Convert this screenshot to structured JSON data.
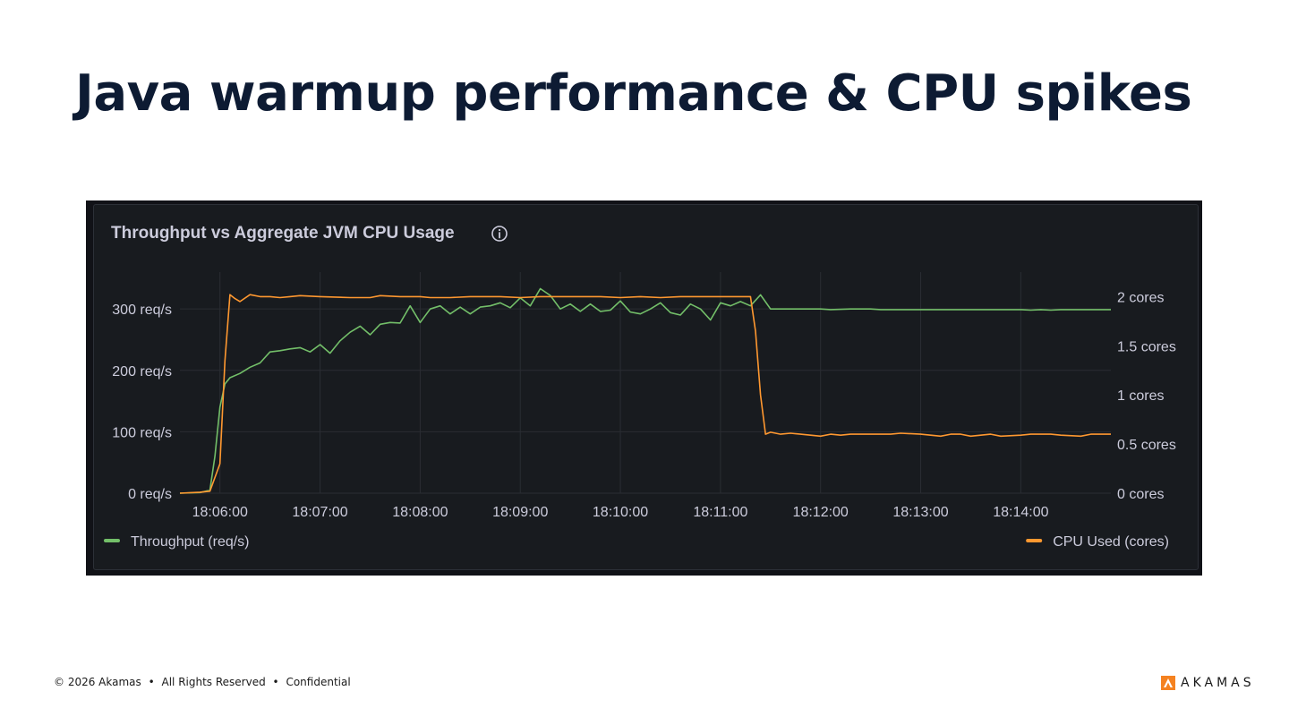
{
  "slide": {
    "title": "Java warmup performance & CPU spikes"
  },
  "footer": {
    "copyright": "© 2026 Akamas",
    "rights": "All Rights Reserved",
    "confidential": "Confidential",
    "separator": "•"
  },
  "logo": {
    "wordmark": "AKAMAS",
    "brand_color": "#f58220"
  },
  "panel": {
    "title": "Throughput vs Aggregate JVM CPU Usage",
    "info_icon": "info-icon"
  },
  "chart_data": {
    "type": "line",
    "title": "Throughput vs Aggregate JVM CPU Usage",
    "x_ticks": [
      "18:06:00",
      "18:07:00",
      "18:08:00",
      "18:09:00",
      "18:10:00",
      "18:11:00",
      "18:12:00",
      "18:13:00",
      "18:14:00"
    ],
    "xlim": [
      "18:05:36",
      "18:14:54"
    ],
    "y_left": {
      "ticks": [
        "0 req/s",
        "100 req/s",
        "200 req/s",
        "300 req/s"
      ],
      "lim": [
        0,
        360
      ]
    },
    "y_right": {
      "ticks": [
        "0 cores",
        "0.5 cores",
        "1 cores",
        "1.5 cores",
        "2 cores"
      ],
      "lim": [
        0,
        2.25
      ]
    },
    "grid": true,
    "legend": {
      "left": "bottom-left",
      "right": "bottom-right"
    },
    "series": [
      {
        "name": "Throughput (req/s)",
        "axis": "left",
        "color": "#73bf69",
        "points": [
          [
            "18:05:36",
            0
          ],
          [
            "18:05:48",
            1
          ],
          [
            "18:05:54",
            5
          ],
          [
            "18:05:57",
            60
          ],
          [
            "18:06:00",
            140
          ],
          [
            "18:06:03",
            178
          ],
          [
            "18:06:06",
            188
          ],
          [
            "18:06:12",
            195
          ],
          [
            "18:06:18",
            205
          ],
          [
            "18:06:24",
            212
          ],
          [
            "18:06:30",
            230
          ],
          [
            "18:06:36",
            232
          ],
          [
            "18:06:42",
            235
          ],
          [
            "18:06:48",
            237
          ],
          [
            "18:06:54",
            230
          ],
          [
            "18:07:00",
            242
          ],
          [
            "18:07:06",
            228
          ],
          [
            "18:07:12",
            248
          ],
          [
            "18:07:18",
            262
          ],
          [
            "18:07:24",
            272
          ],
          [
            "18:07:30",
            258
          ],
          [
            "18:07:36",
            275
          ],
          [
            "18:07:42",
            278
          ],
          [
            "18:07:48",
            277
          ],
          [
            "18:07:54",
            305
          ],
          [
            "18:08:00",
            278
          ],
          [
            "18:08:06",
            300
          ],
          [
            "18:08:12",
            305
          ],
          [
            "18:08:18",
            292
          ],
          [
            "18:08:24",
            303
          ],
          [
            "18:08:30",
            292
          ],
          [
            "18:08:36",
            303
          ],
          [
            "18:08:42",
            305
          ],
          [
            "18:08:48",
            310
          ],
          [
            "18:08:54",
            302
          ],
          [
            "18:09:00",
            318
          ],
          [
            "18:09:06",
            305
          ],
          [
            "18:09:12",
            333
          ],
          [
            "18:09:18",
            322
          ],
          [
            "18:09:24",
            300
          ],
          [
            "18:09:30",
            308
          ],
          [
            "18:09:36",
            296
          ],
          [
            "18:09:42",
            308
          ],
          [
            "18:09:48",
            296
          ],
          [
            "18:09:54",
            298
          ],
          [
            "18:10:00",
            313
          ],
          [
            "18:10:06",
            295
          ],
          [
            "18:10:12",
            292
          ],
          [
            "18:10:18",
            300
          ],
          [
            "18:10:24",
            310
          ],
          [
            "18:10:30",
            294
          ],
          [
            "18:10:36",
            290
          ],
          [
            "18:10:42",
            308
          ],
          [
            "18:10:48",
            300
          ],
          [
            "18:10:54",
            282
          ],
          [
            "18:11:00",
            310
          ],
          [
            "18:11:06",
            305
          ],
          [
            "18:11:12",
            312
          ],
          [
            "18:11:18",
            305
          ],
          [
            "18:11:24",
            323
          ],
          [
            "18:11:30",
            300
          ],
          [
            "18:11:48",
            300
          ],
          [
            "18:12:00",
            300
          ],
          [
            "18:12:06",
            299
          ],
          [
            "18:12:18",
            300
          ],
          [
            "18:12:30",
            300
          ],
          [
            "18:12:36",
            299
          ],
          [
            "18:13:00",
            299
          ],
          [
            "18:13:30",
            299
          ],
          [
            "18:14:00",
            299
          ],
          [
            "18:14:06",
            298
          ],
          [
            "18:14:12",
            299
          ],
          [
            "18:14:18",
            298
          ],
          [
            "18:14:24",
            299
          ],
          [
            "18:14:54",
            299
          ]
        ]
      },
      {
        "name": "CPU Used (cores)",
        "axis": "right",
        "color": "#ff9830",
        "points": [
          [
            "18:05:36",
            0.0
          ],
          [
            "18:05:48",
            0.01
          ],
          [
            "18:05:54",
            0.02
          ],
          [
            "18:06:00",
            0.3
          ],
          [
            "18:06:03",
            1.35
          ],
          [
            "18:06:06",
            2.02
          ],
          [
            "18:06:09",
            1.98
          ],
          [
            "18:06:12",
            1.95
          ],
          [
            "18:06:18",
            2.02
          ],
          [
            "18:06:24",
            2.0
          ],
          [
            "18:06:30",
            2.0
          ],
          [
            "18:06:36",
            1.99
          ],
          [
            "18:06:42",
            2.0
          ],
          [
            "18:06:48",
            2.01
          ],
          [
            "18:07:00",
            2.0
          ],
          [
            "18:07:18",
            1.99
          ],
          [
            "18:07:30",
            1.99
          ],
          [
            "18:07:36",
            2.01
          ],
          [
            "18:07:48",
            2.0
          ],
          [
            "18:08:00",
            2.0
          ],
          [
            "18:08:06",
            1.99
          ],
          [
            "18:08:18",
            1.99
          ],
          [
            "18:08:30",
            2.0
          ],
          [
            "18:08:48",
            2.0
          ],
          [
            "18:09:00",
            1.99
          ],
          [
            "18:09:12",
            2.0
          ],
          [
            "18:09:24",
            2.0
          ],
          [
            "18:09:36",
            2.0
          ],
          [
            "18:09:48",
            2.0
          ],
          [
            "18:10:00",
            1.99
          ],
          [
            "18:10:12",
            2.0
          ],
          [
            "18:10:24",
            1.99
          ],
          [
            "18:10:36",
            2.0
          ],
          [
            "18:10:48",
            2.0
          ],
          [
            "18:11:06",
            2.0
          ],
          [
            "18:11:18",
            2.0
          ],
          [
            "18:11:21",
            1.65
          ],
          [
            "18:11:24",
            1.0
          ],
          [
            "18:11:27",
            0.6
          ],
          [
            "18:11:30",
            0.62
          ],
          [
            "18:11:36",
            0.6
          ],
          [
            "18:11:42",
            0.61
          ],
          [
            "18:11:48",
            0.6
          ],
          [
            "18:12:00",
            0.58
          ],
          [
            "18:12:06",
            0.6
          ],
          [
            "18:12:12",
            0.59
          ],
          [
            "18:12:18",
            0.6
          ],
          [
            "18:12:30",
            0.6
          ],
          [
            "18:12:42",
            0.6
          ],
          [
            "18:12:48",
            0.61
          ],
          [
            "18:13:00",
            0.6
          ],
          [
            "18:13:06",
            0.59
          ],
          [
            "18:13:12",
            0.58
          ],
          [
            "18:13:18",
            0.6
          ],
          [
            "18:13:24",
            0.6
          ],
          [
            "18:13:30",
            0.58
          ],
          [
            "18:13:36",
            0.59
          ],
          [
            "18:13:42",
            0.6
          ],
          [
            "18:13:48",
            0.58
          ],
          [
            "18:14:00",
            0.59
          ],
          [
            "18:14:06",
            0.6
          ],
          [
            "18:14:18",
            0.6
          ],
          [
            "18:14:24",
            0.59
          ],
          [
            "18:14:36",
            0.58
          ],
          [
            "18:14:42",
            0.6
          ],
          [
            "18:14:54",
            0.6
          ]
        ]
      }
    ]
  }
}
